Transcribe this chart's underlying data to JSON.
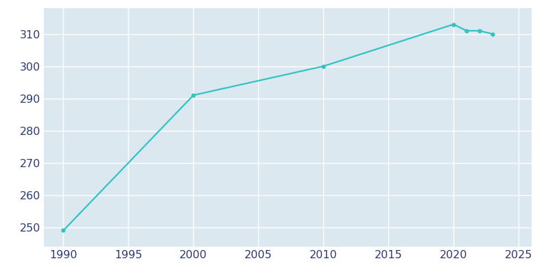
{
  "years": [
    1990,
    2000,
    2010,
    2020,
    2021,
    2022,
    2023
  ],
  "population": [
    249,
    291,
    300,
    313,
    311,
    311,
    310
  ],
  "line_color": "#2ec4c4",
  "marker": "o",
  "marker_size": 3.5,
  "line_width": 1.6,
  "figure_bg_color": "#ffffff",
  "axes_bg_color": "#dce8f0",
  "grid_color": "#ffffff",
  "tick_label_color": "#2e3a6e",
  "xlim": [
    1988.5,
    2026
  ],
  "ylim": [
    244,
    318
  ],
  "xticks": [
    1990,
    1995,
    2000,
    2005,
    2010,
    2015,
    2020,
    2025
  ],
  "yticks": [
    250,
    260,
    270,
    280,
    290,
    300,
    310
  ],
  "tick_fontsize": 11.5
}
